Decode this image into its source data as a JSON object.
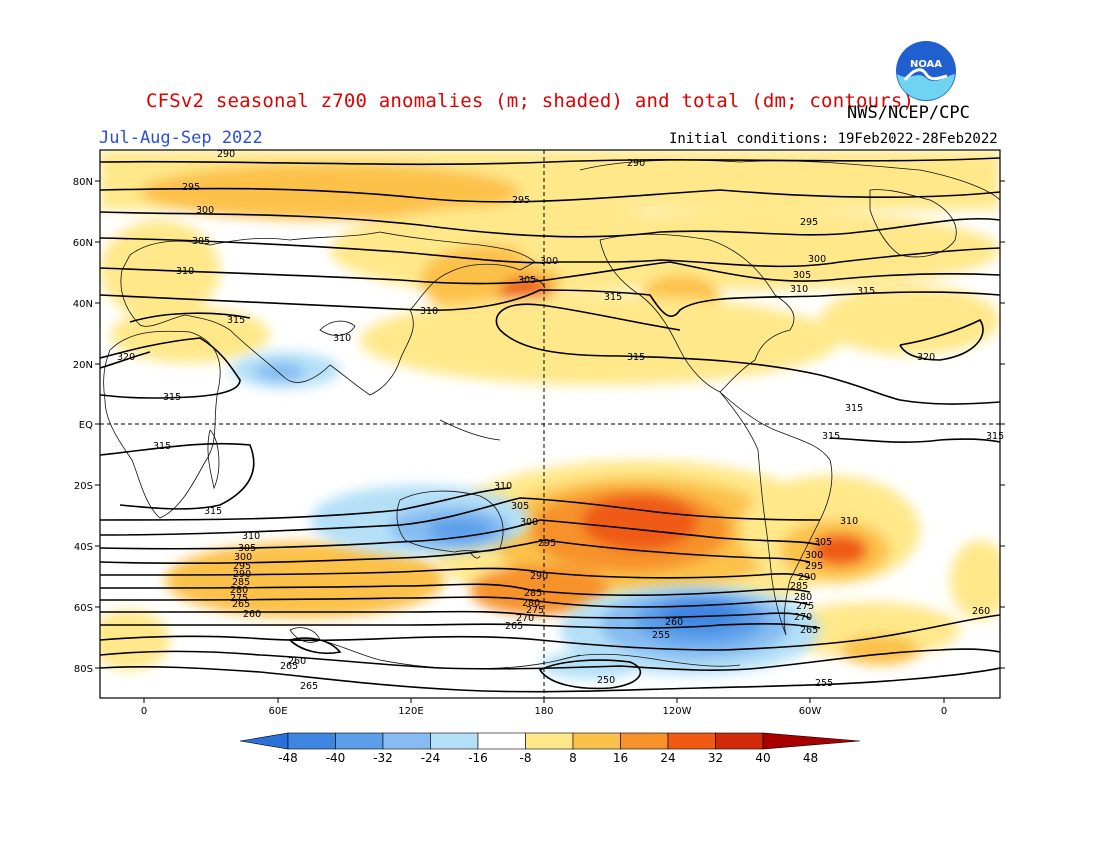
{
  "header": {
    "title": "CFSv2 seasonal z700 anomalies (m; shaded) and total (dm; contours)",
    "agency": "NWS/NCEP/CPC",
    "season": "Jul-Aug-Sep 2022",
    "initial_conditions": "Initial conditions: 19Feb2022-28Feb2022",
    "logo_text": "NOAA"
  },
  "axes": {
    "lat_labels": [
      "80N",
      "60N",
      "40N",
      "20N",
      "EQ",
      "20S",
      "40S",
      "60S",
      "80S"
    ],
    "lon_labels": [
      "0",
      "60E",
      "120E",
      "180",
      "120W",
      "60W",
      "0"
    ]
  },
  "colorbar": {
    "labels": [
      "-48",
      "-40",
      "-32",
      "-24",
      "-16",
      "-8",
      "8",
      "16",
      "24",
      "32",
      "40",
      "48"
    ],
    "colors": [
      "#2b6fd8",
      "#3f86e2",
      "#5b9fea",
      "#86bcf2",
      "#b4e0f7",
      "#ffffff",
      "#ffe88a",
      "#fcc14a",
      "#f7922b",
      "#ef5a14",
      "#d12a0a",
      "#a80000"
    ]
  },
  "contours": {
    "labels": [
      "290",
      "295",
      "300",
      "305",
      "310",
      "315",
      "320",
      "315",
      "315",
      "315",
      "310",
      "305",
      "300",
      "295",
      "290",
      "285",
      "280",
      "275",
      "270",
      "265",
      "260",
      "255",
      "250",
      "260",
      "265",
      "260",
      "255",
      "250",
      "305",
      "310",
      "315",
      "300",
      "290",
      "285",
      "280",
      "275",
      "270",
      "265",
      "260",
      "255",
      "320"
    ]
  }
}
